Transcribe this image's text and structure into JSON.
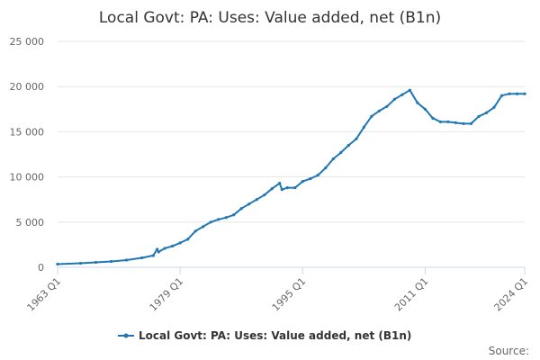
{
  "chart_data": {
    "type": "line",
    "title": "Local Govt: PA: Uses: Value added, net (B1n)",
    "xlabel": "",
    "ylabel": "",
    "x_range": [
      1963.0,
      2024.0
    ],
    "ylim": [
      0,
      25000
    ],
    "y_ticks": [
      0,
      5000,
      10000,
      15000,
      20000,
      25000
    ],
    "y_tick_labels": [
      "0",
      "5 000",
      "10 000",
      "15 000",
      "20 000",
      "25 000"
    ],
    "x_ticks": [
      1963.0,
      1979.0,
      1995.0,
      2011.0,
      2024.0
    ],
    "x_tick_labels": [
      "1963 Q1",
      "1979 Q1",
      "1995 Q1",
      "2011 Q1",
      "2024 Q1"
    ],
    "grid": true,
    "legend": "bottom-center",
    "series": [
      {
        "name": "Local Govt: PA: Uses: Value added, net (B1n)",
        "color": "#1f77b4",
        "points": [
          [
            1963.0,
            350
          ],
          [
            1966.0,
            450
          ],
          [
            1968.0,
            550
          ],
          [
            1970.0,
            650
          ],
          [
            1972.0,
            800
          ],
          [
            1974.0,
            1050
          ],
          [
            1975.5,
            1300
          ],
          [
            1976.0,
            2000
          ],
          [
            1976.2,
            1700
          ],
          [
            1977.0,
            2100
          ],
          [
            1978.0,
            2350
          ],
          [
            1979.0,
            2700
          ],
          [
            1980.0,
            3100
          ],
          [
            1981.0,
            4000
          ],
          [
            1982.0,
            4500
          ],
          [
            1983.0,
            5000
          ],
          [
            1984.0,
            5300
          ],
          [
            1985.0,
            5500
          ],
          [
            1986.0,
            5800
          ],
          [
            1987.0,
            6500
          ],
          [
            1988.0,
            7000
          ],
          [
            1989.0,
            7500
          ],
          [
            1990.0,
            8000
          ],
          [
            1991.0,
            8700
          ],
          [
            1992.0,
            9300
          ],
          [
            1992.3,
            8600
          ],
          [
            1993.0,
            8800
          ],
          [
            1994.0,
            8800
          ],
          [
            1995.0,
            9500
          ],
          [
            1996.0,
            9800
          ],
          [
            1997.0,
            10200
          ],
          [
            1998.0,
            11000
          ],
          [
            1999.0,
            12000
          ],
          [
            2000.0,
            12700
          ],
          [
            2001.0,
            13500
          ],
          [
            2002.0,
            14200
          ],
          [
            2003.0,
            15500
          ],
          [
            2004.0,
            16700
          ],
          [
            2005.0,
            17300
          ],
          [
            2006.0,
            17800
          ],
          [
            2007.0,
            18600
          ],
          [
            2008.0,
            19100
          ],
          [
            2009.0,
            19600
          ],
          [
            2010.0,
            18200
          ],
          [
            2011.0,
            17500
          ],
          [
            2012.0,
            16500
          ],
          [
            2013.0,
            16100
          ],
          [
            2014.0,
            16100
          ],
          [
            2015.0,
            16000
          ],
          [
            2016.0,
            15900
          ],
          [
            2017.0,
            15900
          ],
          [
            2018.0,
            16700
          ],
          [
            2019.0,
            17100
          ],
          [
            2020.0,
            17700
          ],
          [
            2021.0,
            19000
          ],
          [
            2022.0,
            19200
          ],
          [
            2023.0,
            19200
          ],
          [
            2024.0,
            19200
          ]
        ]
      }
    ],
    "source_label": "Source:"
  }
}
